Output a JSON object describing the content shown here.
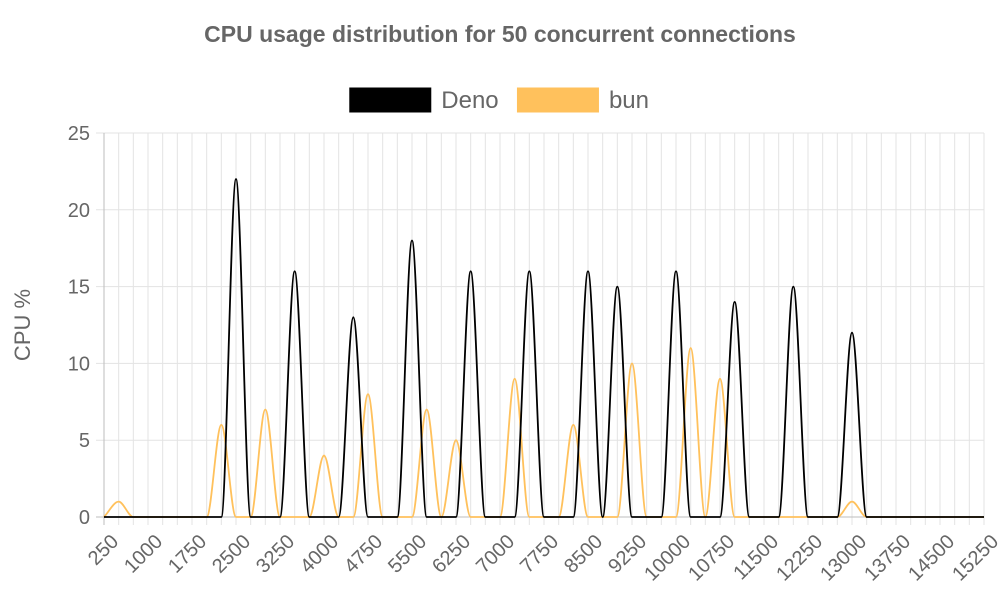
{
  "chart_data": {
    "type": "line",
    "title": "CPU usage distribution for 50 concurrent connections",
    "xlabel": "",
    "ylabel": "CPU %",
    "ylim": [
      0,
      25
    ],
    "yticks": [
      0,
      5,
      10,
      15,
      20,
      25
    ],
    "x_tick_labels": [
      "250",
      "1000",
      "1750",
      "2500",
      "3250",
      "4000",
      "4750",
      "5500",
      "6250",
      "7000",
      "7750",
      "8500",
      "9250",
      "10000",
      "10750",
      "11500",
      "12250",
      "13000",
      "13750",
      "14500",
      "15250"
    ],
    "grid": true,
    "legend_position": "top",
    "series": [
      {
        "name": "Deno",
        "color": "#000000",
        "x": [
          250,
          500,
          750,
          1000,
          1250,
          1500,
          1750,
          2000,
          2250,
          2500,
          2750,
          3000,
          3250,
          3500,
          3750,
          4000,
          4250,
          4500,
          4750,
          5000,
          5250,
          5500,
          5750,
          6000,
          6250,
          6500,
          6750,
          7000,
          7250,
          7500,
          7750,
          8000,
          8250,
          8500,
          8750,
          9000,
          9250,
          9500,
          9750,
          10000,
          10250,
          10500,
          10750,
          11000,
          11250,
          11500,
          11750,
          12000,
          12250,
          12500,
          12750,
          13000,
          13250,
          13500,
          13750,
          14000,
          14250,
          14500,
          14750,
          15000,
          15250
        ],
        "values": [
          0,
          0,
          0,
          0,
          0,
          0,
          0,
          0,
          0,
          22,
          0,
          0,
          0,
          16,
          0,
          0,
          0,
          13,
          0,
          0,
          0,
          18,
          0,
          0,
          0,
          16,
          0,
          0,
          0,
          16,
          0,
          0,
          0,
          16,
          0,
          15,
          0,
          0,
          0,
          16,
          0,
          0,
          0,
          14,
          0,
          0,
          0,
          15,
          0,
          0,
          0,
          12,
          0,
          0,
          0,
          0,
          0,
          0,
          0,
          0,
          0
        ]
      },
      {
        "name": "bun",
        "color": "#FFC15C",
        "x": [
          250,
          500,
          750,
          1000,
          1250,
          1500,
          1750,
          2000,
          2250,
          2500,
          2750,
          3000,
          3250,
          3500,
          3750,
          4000,
          4250,
          4500,
          4750,
          5000,
          5250,
          5500,
          5750,
          6000,
          6250,
          6500,
          6750,
          7000,
          7250,
          7500,
          7750,
          8000,
          8250,
          8500,
          8750,
          9000,
          9250,
          9500,
          9750,
          10000,
          10250,
          10500,
          10750,
          11000,
          11250,
          11500,
          11750,
          12000,
          12250,
          12500,
          12750,
          13000,
          13250,
          13500,
          13750,
          14000,
          14250,
          14500,
          14750,
          15000,
          15250
        ],
        "values": [
          0,
          1,
          0,
          0,
          0,
          0,
          0,
          0,
          6,
          0,
          0,
          7,
          0,
          0,
          0,
          4,
          0,
          0,
          8,
          0,
          0,
          0,
          7,
          0,
          5,
          0,
          0,
          0,
          9,
          0,
          0,
          0,
          6,
          0,
          0,
          0,
          10,
          0,
          0,
          0,
          11,
          0,
          9,
          0,
          0,
          0,
          0,
          0,
          0,
          0,
          0,
          1,
          0,
          0,
          0,
          0,
          0,
          0,
          0,
          0,
          0
        ]
      }
    ]
  }
}
